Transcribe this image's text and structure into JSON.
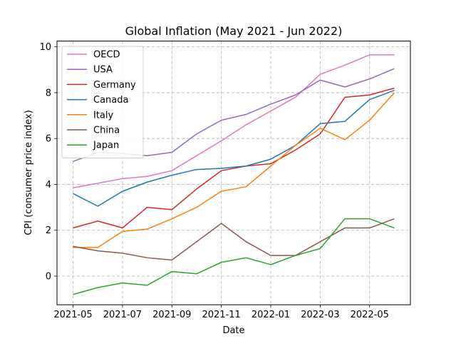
{
  "chart_data": {
    "type": "line",
    "title": "Global Inflation (May 2021 - Jun 2022)",
    "xlabel": "Date",
    "ylabel": "CPI (consumer price index)",
    "ylim": [
      -1.25,
      10.25
    ],
    "yticks": [
      0,
      2,
      4,
      6,
      8,
      10
    ],
    "x": [
      "2021-05",
      "2021-06",
      "2021-07",
      "2021-08",
      "2021-09",
      "2021-10",
      "2021-11",
      "2021-12",
      "2022-01",
      "2022-02",
      "2022-03",
      "2022-04",
      "2022-05",
      "2022-06"
    ],
    "xticks": [
      "2021-05",
      "2021-07",
      "2021-09",
      "2021-11",
      "2022-01",
      "2022-03",
      "2022-05"
    ],
    "grid": true,
    "grid_style": "dashed",
    "legend_position": "upper-left",
    "series": [
      {
        "name": "OECD",
        "color": "#e377c2",
        "values": [
          3.85,
          4.05,
          4.25,
          4.35,
          4.6,
          5.25,
          5.9,
          6.6,
          7.2,
          7.8,
          8.8,
          9.2,
          9.65,
          9.65
        ]
      },
      {
        "name": "USA",
        "color": "#9467bd",
        "values": [
          5.0,
          5.4,
          5.35,
          5.25,
          5.4,
          6.2,
          6.8,
          7.05,
          7.5,
          7.9,
          8.55,
          8.25,
          8.6,
          9.05
        ]
      },
      {
        "name": "Germany",
        "color": "#d62728",
        "values": [
          2.1,
          2.4,
          2.1,
          3.0,
          2.9,
          3.8,
          4.6,
          4.8,
          4.9,
          5.5,
          6.2,
          7.8,
          7.9,
          8.2
        ]
      },
      {
        "name": "Canada",
        "color": "#1f77b4",
        "values": [
          3.6,
          3.05,
          3.7,
          4.1,
          4.4,
          4.65,
          4.7,
          4.8,
          5.1,
          5.7,
          6.65,
          6.75,
          7.7,
          8.1
        ]
      },
      {
        "name": "Italy",
        "color": "#ff7f0e",
        "values": [
          1.25,
          1.25,
          1.95,
          2.05,
          2.5,
          3.0,
          3.7,
          3.9,
          4.8,
          5.7,
          6.45,
          5.95,
          6.8,
          8.0
        ]
      },
      {
        "name": "China",
        "color": "#8c564b",
        "values": [
          1.3,
          1.1,
          1.0,
          0.8,
          0.7,
          1.5,
          2.3,
          1.5,
          0.9,
          0.9,
          1.5,
          2.1,
          2.1,
          2.5
        ]
      },
      {
        "name": "Japan",
        "color": "#2ca02c",
        "values": [
          -0.8,
          -0.5,
          -0.3,
          -0.4,
          0.2,
          0.1,
          0.6,
          0.8,
          0.5,
          0.9,
          1.2,
          2.5,
          2.5,
          2.1
        ]
      }
    ]
  }
}
